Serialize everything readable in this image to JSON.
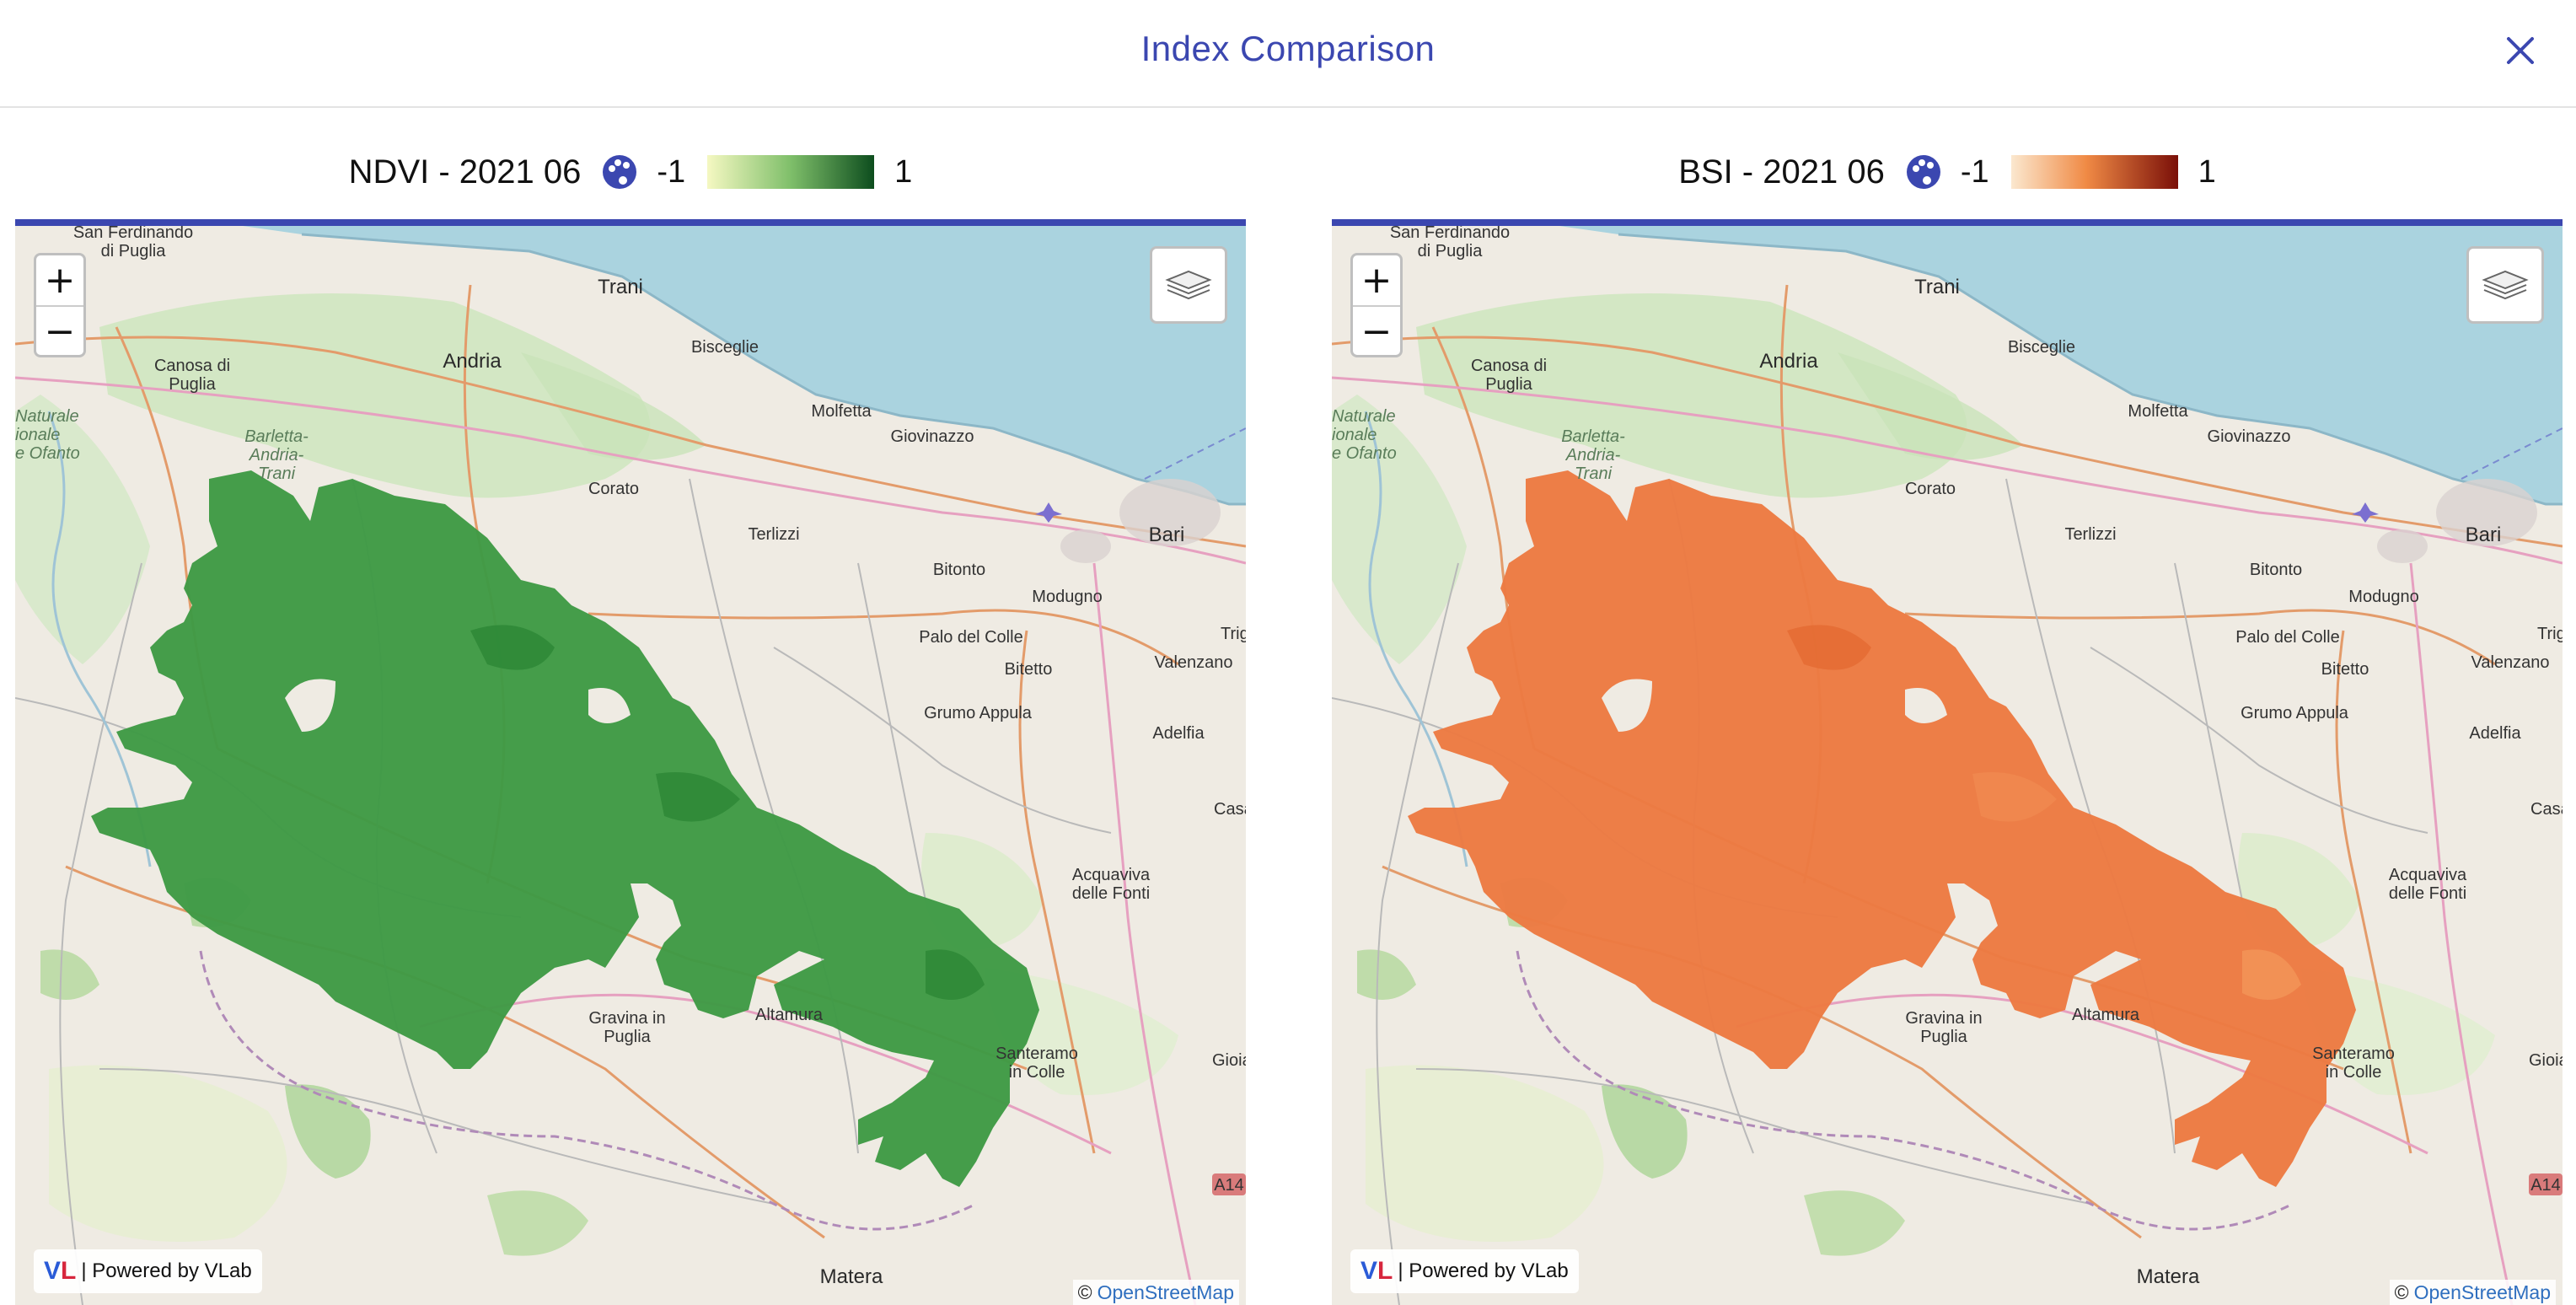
{
  "header": {
    "title": "Index Comparison"
  },
  "panels": [
    {
      "legend": {
        "title": "NDVI - 2021 06",
        "min": "-1",
        "max": "1",
        "colors": [
          "#f5f8c2",
          "#7fbf6a",
          "#0d4d1e"
        ],
        "palette_icon": "palette-icon"
      },
      "overlay_color": "#3f9a45",
      "overlay_dark": "#2f8a37"
    },
    {
      "legend": {
        "title": "BSI - 2021 06",
        "min": "-1",
        "max": "1",
        "colors": [
          "#fbe8cf",
          "#f08a45",
          "#7a0f08"
        ],
        "palette_icon": "palette-icon"
      },
      "overlay_color": "#ec7a42",
      "overlay_dark": "#e46d34"
    }
  ],
  "map_controls": {
    "zoom_in": "+",
    "zoom_out": "−",
    "layers_icon": "layers-icon",
    "powered_by": "| Powered by VLab",
    "vlab_logo_v": "V",
    "vlab_logo_l": "L",
    "attribution_prefix": "©",
    "attribution_link": "OpenStreetMap"
  },
  "places": {
    "san_ferdinando": [
      "San Ferdinando",
      "di Puglia"
    ],
    "trani": "Trani",
    "andria": "Andria",
    "bisceglie": "Bisceglie",
    "canosa": [
      "Canosa di",
      "Puglia"
    ],
    "naturale": [
      "Naturale",
      "ionale",
      "e Ofanto"
    ],
    "barletta": [
      "Barletta-",
      "Andria-",
      "Trani"
    ],
    "molfetta": "Molfetta",
    "giovinazzo": "Giovinazzo",
    "corato": "Corato",
    "terlizzi": "Terlizzi",
    "bari": "Bari",
    "bitonto": "Bitonto",
    "modugno": "Modugno",
    "trigg": "Trigg",
    "palo": "Palo del Colle",
    "bitetto": "Bitetto",
    "valenzano": "Valenzano",
    "grumo": "Grumo Appula",
    "adelfia": "Adelfia",
    "casama": "Casama",
    "acquaviva": [
      "Acquaviva",
      "delle Fonti"
    ],
    "gravina": [
      "Gravina in",
      "Puglia"
    ],
    "altamura": "Altamura",
    "santeramo": [
      "Santeramo",
      "in Colle"
    ],
    "gioia": "Gioia de",
    "a14": "A14",
    "matera": "Matera"
  }
}
